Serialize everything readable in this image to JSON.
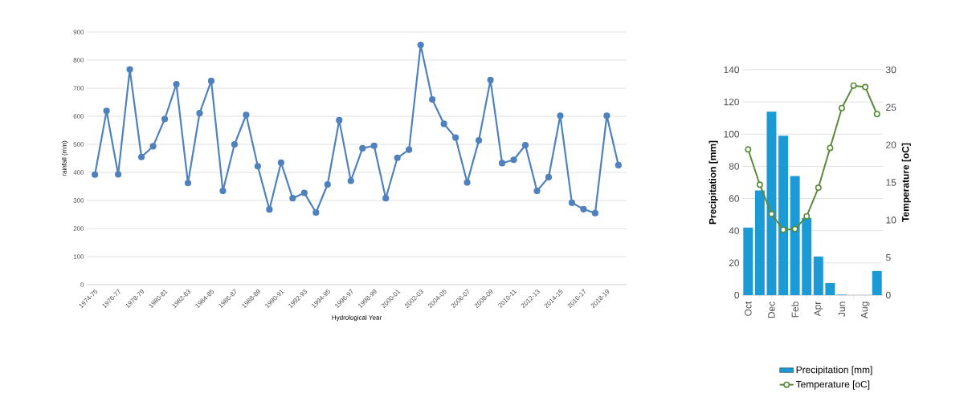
{
  "chart_data": [
    {
      "type": "line",
      "xlabel": "Hydrological Year",
      "ylabel": "rainfall (mm)",
      "categories": [
        "1974-75",
        null,
        "1976-77",
        null,
        "1978-79",
        null,
        "1980-81",
        null,
        "1982-83",
        null,
        "1984-85",
        null,
        "1986-87",
        null,
        "1988-89",
        null,
        "1990-91",
        null,
        "1992-93",
        null,
        "1994-95",
        null,
        "1996-97",
        null,
        "1998-99",
        null,
        "2000-01",
        null,
        "2002-03",
        null,
        "2004-05",
        null,
        "2006-07",
        null,
        "2008-09",
        null,
        "2010-11",
        null,
        "2012-13",
        null,
        "2014-15",
        null,
        "2016-17",
        null,
        "2018-19",
        null
      ],
      "series": [
        {
          "color": "#4f81bd",
          "values": [
            392,
            619,
            393,
            767,
            455,
            493,
            590,
            714,
            362,
            611,
            726,
            334,
            500,
            605,
            422,
            268,
            435,
            308,
            327,
            257,
            357,
            586,
            370,
            486,
            495,
            308,
            452,
            481,
            854,
            660,
            573,
            524,
            364,
            514,
            729,
            433,
            445,
            497,
            334,
            383,
            602,
            292,
            269,
            255,
            602,
            426
          ]
        }
      ],
      "ylim": [
        0,
        900
      ],
      "yticks": [
        0,
        100,
        200,
        300,
        400,
        500,
        600,
        700,
        800,
        900
      ],
      "grid": "y",
      "marker": "circle"
    },
    {
      "type": "bar",
      "ylabel": "Precipitation [mm]",
      "y2label": "Temperature [oC]",
      "categories": [
        "Oct",
        null,
        "Dec",
        null,
        "Feb",
        null,
        "Apr",
        null,
        "Jun",
        null,
        "Aug",
        null
      ],
      "series": [
        {
          "name": "Precipitation [mm]",
          "color": "#1b9ad6",
          "values": [
            42,
            65,
            114,
            99,
            74,
            48,
            24,
            7.5,
            0.3,
            0,
            0,
            15
          ]
        },
        {
          "name": "Temperature [oC]",
          "type": "line",
          "axis": "y2",
          "color": "#5a8a3c",
          "values": [
            19.4,
            14.7,
            10.8,
            8.7,
            8.8,
            10.5,
            14.3,
            19.6,
            24.9,
            27.9,
            27.7,
            24.1
          ]
        }
      ],
      "ylim": [
        0,
        140
      ],
      "yticks": [
        0,
        20,
        40,
        60,
        80,
        100,
        120,
        140
      ],
      "y2lim": [
        0,
        30
      ],
      "y2ticks": [
        0,
        5,
        10,
        15,
        20,
        25,
        30
      ],
      "grid": "y",
      "legend": "bottom",
      "marker": "circle"
    }
  ]
}
